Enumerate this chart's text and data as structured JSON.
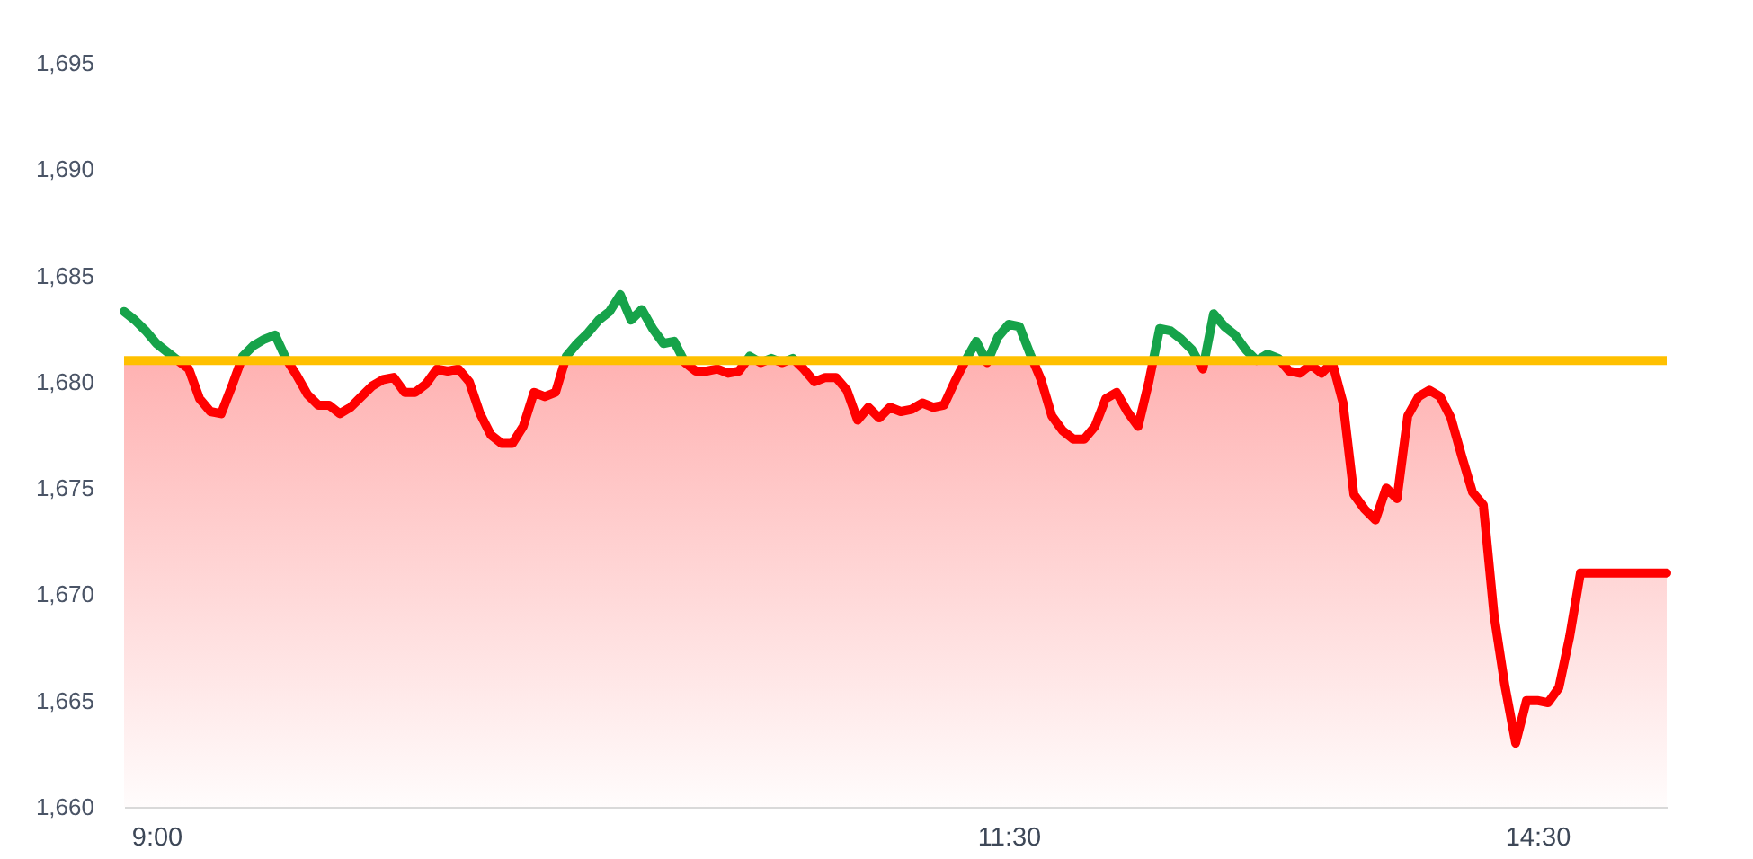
{
  "chart_data": {
    "type": "area",
    "categories": [
      null,
      null,
      null,
      "9:00",
      null,
      null,
      null,
      null,
      null,
      null,
      null,
      null,
      null,
      null,
      null,
      null,
      null,
      null,
      null,
      null,
      null,
      null,
      null,
      null,
      null,
      null,
      null,
      null,
      null,
      null,
      null,
      null,
      null,
      null,
      null,
      null,
      null,
      null,
      null,
      null,
      null,
      null,
      null,
      null,
      null,
      null,
      null,
      null,
      null,
      null,
      null,
      null,
      null,
      null,
      null,
      null,
      null,
      null,
      null,
      null,
      null,
      null,
      null,
      null,
      null,
      null,
      null,
      null,
      null,
      null,
      null,
      null,
      null,
      null,
      null,
      null,
      null,
      null,
      null,
      null,
      null,
      null,
      "11:30",
      null,
      null,
      null,
      null,
      null,
      null,
      null,
      null,
      null,
      null,
      null,
      null,
      null,
      null,
      null,
      null,
      null,
      null,
      null,
      null,
      null,
      null,
      null,
      null,
      null,
      null,
      null,
      null,
      null,
      null,
      null,
      null,
      null,
      null,
      null,
      null,
      null,
      null,
      null,
      null,
      null,
      null,
      null,
      null,
      null,
      null,
      null,
      null,
      "14:30",
      null,
      null,
      null,
      null,
      null,
      null,
      null,
      null,
      null,
      null,
      null,
      null
    ],
    "series": [
      {
        "color": "#ff0000",
        "values": [
          1683.3,
          1682.9,
          1682.4,
          1681.8,
          1681.4,
          1681.0,
          1680.6,
          1679.2,
          1678.6,
          1678.5,
          1679.8,
          1681.2,
          1681.7,
          1682.0,
          1682.2,
          1681.1,
          1680.3,
          1679.4,
          1678.9,
          1678.9,
          1678.5,
          1678.8,
          1679.3,
          1679.8,
          1680.1,
          1680.2,
          1679.5,
          1679.5,
          1679.9,
          1680.6,
          1680.5,
          1680.6,
          1680.0,
          1678.5,
          1677.5,
          1677.1,
          1677.1,
          1677.9,
          1679.5,
          1679.3,
          1679.5,
          1681.2,
          1681.8,
          1682.3,
          1682.9,
          1683.3,
          1684.1,
          1682.9,
          1683.4,
          1682.5,
          1681.8,
          1681.9,
          1680.9,
          1680.5,
          1680.5,
          1680.6,
          1680.4,
          1680.5,
          1681.2,
          1680.9,
          1681.1,
          1680.9,
          1681.1,
          1680.6,
          1680.0,
          1680.2,
          1680.2,
          1679.6,
          1678.2,
          1678.8,
          1678.3,
          1678.8,
          1678.6,
          1678.7,
          1679.0,
          1678.8,
          1678.9,
          1680.0,
          1681.0,
          1681.9,
          1680.9,
          1682.1,
          1682.7,
          1682.6,
          1681.3,
          1680.1,
          1678.4,
          1677.7,
          1677.3,
          1677.3,
          1677.9,
          1679.2,
          1679.5,
          1678.6,
          1677.9,
          1680.0,
          1682.5,
          1682.4,
          1682.0,
          1681.5,
          1680.6,
          1683.2,
          1682.6,
          1682.2,
          1681.5,
          1681.0,
          1681.3,
          1681.1,
          1680.5,
          1680.4,
          1680.8,
          1680.4,
          1680.9,
          1679.0,
          1674.7,
          1674.0,
          1673.5,
          1675.0,
          1674.5,
          1678.4,
          1679.3,
          1679.6,
          1679.3,
          1678.3,
          1676.5,
          1674.8,
          1674.2,
          1669.0,
          1665.7,
          1663.0,
          1665.0,
          1665.0,
          1664.9,
          1665.6,
          1668.0,
          1671.0,
          1671.0,
          1671.0,
          1671.0,
          1671.0,
          1671.0,
          1671.0,
          1671.0,
          1671.0
        ],
        "colors": [
          "#16a34a",
          "#16a34a",
          "#16a34a",
          "#16a34a",
          "#16a34a",
          "#ff0000",
          "#ff0000",
          "#ff0000",
          "#ff0000",
          "#ff0000",
          "#ff0000",
          "#16a34a",
          "#16a34a",
          "#16a34a",
          "#16a34a",
          "#16a34a",
          "#ff0000",
          "#ff0000",
          "#ff0000",
          "#ff0000",
          "#ff0000",
          "#ff0000",
          "#ff0000",
          "#ff0000",
          "#ff0000",
          "#ff0000",
          "#ff0000",
          "#ff0000",
          "#ff0000",
          "#ff0000",
          "#ff0000",
          "#ff0000",
          "#ff0000",
          "#ff0000",
          "#ff0000",
          "#ff0000",
          "#ff0000",
          "#ff0000",
          "#ff0000",
          "#ff0000",
          "#ff0000",
          "#16a34a",
          "#16a34a",
          "#16a34a",
          "#16a34a",
          "#16a34a",
          "#16a34a",
          "#16a34a",
          "#16a34a",
          "#16a34a",
          "#16a34a",
          "#16a34a",
          "#ff0000",
          "#ff0000",
          "#ff0000",
          "#ff0000",
          "#ff0000",
          "#ff0000",
          "#16a34a",
          "#ff0000",
          "#16a34a",
          "#ff0000",
          "#16a34a",
          "#ff0000",
          "#ff0000",
          "#ff0000",
          "#ff0000",
          "#ff0000",
          "#ff0000",
          "#ff0000",
          "#ff0000",
          "#ff0000",
          "#ff0000",
          "#ff0000",
          "#ff0000",
          "#ff0000",
          "#ff0000",
          "#ff0000",
          "#ff0000",
          "#16a34a",
          "#ff0000",
          "#16a34a",
          "#16a34a",
          "#16a34a",
          "#16a34a",
          "#ff0000",
          "#ff0000",
          "#ff0000",
          "#ff0000",
          "#ff0000",
          "#ff0000",
          "#ff0000",
          "#ff0000",
          "#ff0000",
          "#ff0000",
          "#ff0000",
          "#16a34a",
          "#16a34a",
          "#16a34a",
          "#16a34a",
          "#ff0000",
          "#16a34a",
          "#16a34a",
          "#16a34a",
          "#16a34a",
          "#ff0000",
          "#16a34a",
          "#16a34a",
          "#ff0000",
          "#ff0000",
          "#ff0000",
          "#ff0000",
          "#ff0000",
          "#ff0000",
          "#ff0000",
          "#ff0000",
          "#ff0000",
          "#ff0000",
          "#ff0000",
          "#ff0000",
          "#ff0000",
          "#ff0000",
          "#ff0000",
          "#ff0000",
          "#ff0000",
          "#ff0000",
          "#ff0000",
          "#ff0000",
          "#ff0000",
          "#ff0000",
          "#ff0000",
          "#ff0000",
          "#ff0000",
          "#ff0000",
          "#ff0000",
          "#ff0000",
          "#ff0000",
          "#ff0000",
          "#ff0000",
          "#ff0000",
          "#ff0000",
          "#ff0000",
          "#ff0000",
          "#ff0000"
        ]
      }
    ],
    "ylim": [
      1660,
      1695
    ],
    "yticks": [
      {
        "value": 1660,
        "label": "1,660"
      },
      {
        "value": 1665,
        "label": "1,665"
      },
      {
        "value": 1670,
        "label": "1,670"
      },
      {
        "value": 1675,
        "label": "1,675"
      },
      {
        "value": 1680,
        "label": "1,680"
      },
      {
        "value": 1685,
        "label": "1,685"
      },
      {
        "value": 1690,
        "label": "1,690"
      },
      {
        "value": 1695,
        "label": "1,695"
      }
    ],
    "ref_lines": [
      {
        "axis": "y",
        "value": 1681,
        "color": "#ffc000"
      }
    ]
  }
}
